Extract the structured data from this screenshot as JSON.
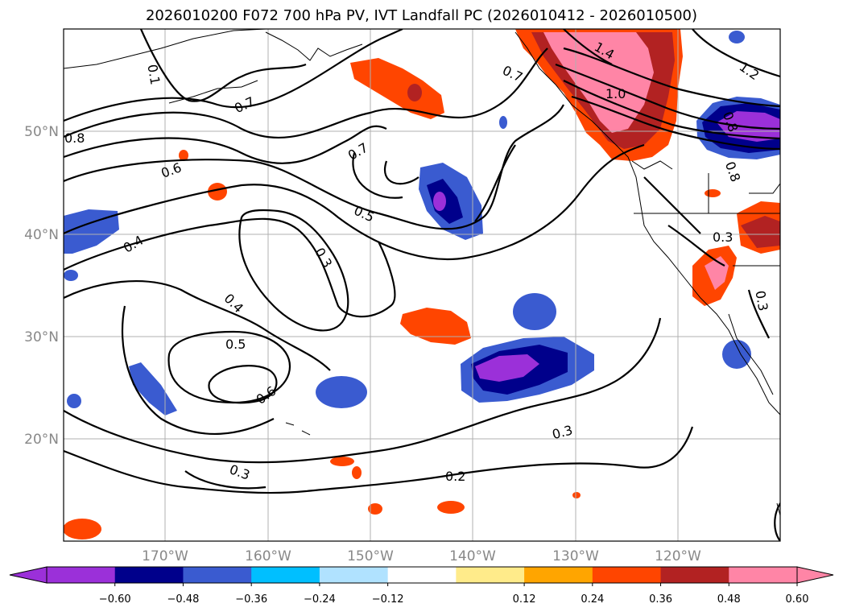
{
  "title": "2026010200 F072 700 hPa PV, IVT Landfall PC (2026010412 - 2026010500)",
  "map": {
    "lat_labels": [
      "50°N",
      "40°N",
      "30°N",
      "20°N"
    ],
    "lon_labels": [
      "170°W",
      "160°W",
      "150°W",
      "140°W",
      "130°W",
      "120°W"
    ],
    "contour_labels": [
      "0.1",
      "0.7",
      "0.8",
      "0.6",
      "0.4",
      "0.7",
      "0.5",
      "0.3",
      "0.4",
      "0.5",
      "0.6",
      "0.3",
      "0.3",
      "0.2",
      "0.7",
      "1.4",
      "1.0",
      "1.2",
      "0.3",
      "0.3",
      "0.8",
      "0.8"
    ]
  },
  "colorbar": {
    "ticks": [
      "−0.60",
      "−0.48",
      "−0.36",
      "−0.24",
      "−0.12",
      "0.12",
      "0.24",
      "0.36",
      "0.48",
      "0.60"
    ],
    "colors": [
      "#9b30d9",
      "#00008b",
      "#3a5bd0",
      "#00bfff",
      "#b0e2ff",
      "#ffffff",
      "#ffeb8a",
      "#ffa500",
      "#ff4500",
      "#b22222",
      "#ff85a6",
      "#ff85a6"
    ]
  }
}
